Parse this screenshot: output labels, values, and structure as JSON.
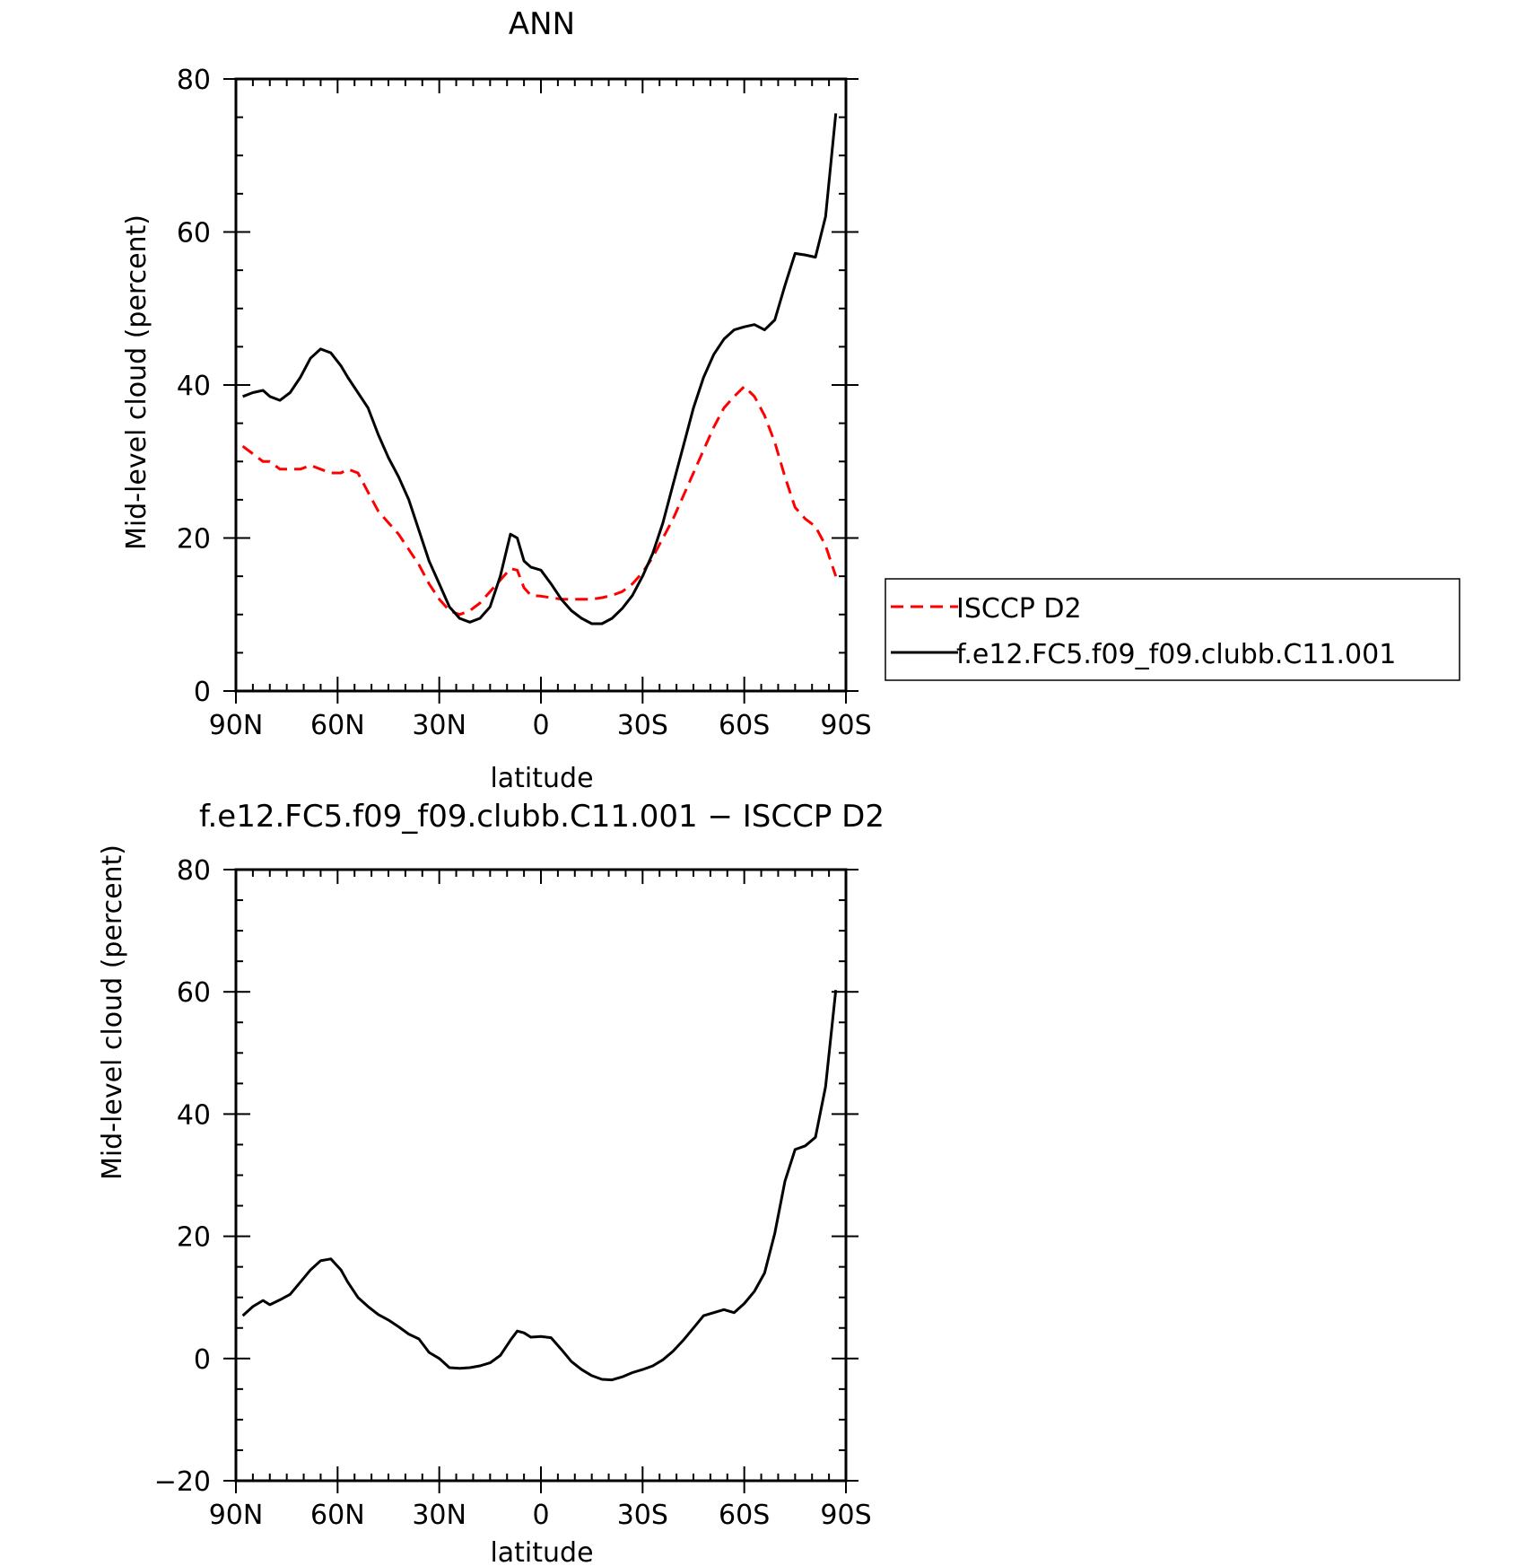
{
  "chart_data": [
    {
      "type": "line",
      "title": "ANN",
      "xlabel": "latitude",
      "ylabel": "Mid-level cloud (percent)",
      "xlim": [
        90,
        -90
      ],
      "ylim": [
        0,
        80
      ],
      "x_ticks": [
        90,
        60,
        30,
        0,
        -30,
        -60,
        -90
      ],
      "x_tick_labels": [
        "90N",
        "60N",
        "30N",
        "0",
        "30S",
        "60S",
        "90S"
      ],
      "y_ticks": [
        0,
        20,
        40,
        60,
        80
      ],
      "y_tick_labels": [
        "0",
        "20",
        "40",
        "60",
        "80"
      ],
      "legend": {
        "position": "right",
        "entries": [
          "ISCCP D2",
          "f.e12.FC5.f09_f09.clubb.C11.001"
        ]
      },
      "series": [
        {
          "name": "ISCCP D2",
          "color": "#ff0000",
          "dashed": true,
          "x": [
            88,
            85,
            82,
            80,
            77,
            74,
            71,
            68,
            65,
            62,
            59,
            57,
            54,
            51,
            48,
            45,
            42,
            39,
            36,
            33,
            30,
            27,
            24,
            21,
            18,
            15,
            12,
            9,
            7,
            5,
            3,
            0,
            -3,
            -6,
            -9,
            -12,
            -15,
            -18,
            -21,
            -24,
            -27,
            -30,
            -33,
            -36,
            -39,
            -42,
            -45,
            -48,
            -51,
            -54,
            -57,
            -60,
            -63,
            -66,
            -69,
            -72,
            -75,
            -78,
            -81,
            -84,
            -87
          ],
          "y": [
            32,
            31,
            30,
            30,
            29,
            29,
            29,
            29.5,
            29,
            28.5,
            28.5,
            29,
            28.5,
            26,
            23.5,
            22,
            20.5,
            18.5,
            16.5,
            14,
            12,
            10.5,
            10,
            10.5,
            11.5,
            13,
            14.5,
            16,
            15.8,
            13.5,
            12.5,
            12.4,
            12.2,
            12,
            12,
            12,
            12,
            12.2,
            12.5,
            13,
            14,
            15.5,
            17.5,
            20,
            22.5,
            25.5,
            28.5,
            31.5,
            34.5,
            37,
            38.5,
            39.8,
            38.5,
            36,
            32.5,
            28,
            24,
            22.5,
            21.5,
            19,
            15
          ]
        },
        {
          "name": "f.e12.FC5.f09_f09.clubb.C11.001",
          "color": "#000000",
          "dashed": false,
          "x": [
            88,
            85,
            82,
            80,
            77,
            74,
            71,
            68,
            65,
            62,
            59,
            57,
            54,
            51,
            48,
            45,
            42,
            39,
            36,
            33,
            30,
            27,
            24,
            21,
            18,
            15,
            12,
            9,
            7,
            5,
            3,
            0,
            -3,
            -6,
            -9,
            -12,
            -15,
            -18,
            -21,
            -24,
            -27,
            -30,
            -33,
            -36,
            -39,
            -42,
            -45,
            -48,
            -51,
            -54,
            -57,
            -60,
            -63,
            -66,
            -69,
            -72,
            -75,
            -78,
            -81,
            -84,
            -87
          ],
          "y": [
            38.5,
            39,
            39.3,
            38.5,
            38,
            39,
            41,
            43.5,
            44.7,
            44.2,
            42.5,
            41,
            39,
            37,
            33.5,
            30.5,
            28,
            25,
            21,
            17,
            14,
            11,
            9.5,
            9,
            9.5,
            11,
            15,
            20.5,
            20,
            17,
            16.2,
            15.8,
            14,
            12,
            10.5,
            9.5,
            8.8,
            8.8,
            9.5,
            10.8,
            12.5,
            15,
            18,
            22,
            27,
            32,
            37,
            41,
            44,
            46,
            47.2,
            47.6,
            47.9,
            47.2,
            48.5,
            53,
            57.2,
            57,
            56.7,
            62,
            75.5
          ]
        }
      ]
    },
    {
      "type": "line",
      "title": "f.e12.FC5.f09_f09.clubb.C11.001 − ISCCP D2",
      "xlabel": "latitude",
      "ylabel": "Mid-level cloud (percent)",
      "xlim": [
        90,
        -90
      ],
      "ylim": [
        -20,
        80
      ],
      "x_ticks": [
        90,
        60,
        30,
        0,
        -30,
        -60,
        -90
      ],
      "x_tick_labels": [
        "90N",
        "60N",
        "30N",
        "0",
        "30S",
        "60S",
        "90S"
      ],
      "y_ticks": [
        -20,
        0,
        20,
        40,
        60,
        80
      ],
      "y_tick_labels": [
        "−20",
        "0",
        "20",
        "40",
        "60",
        "80"
      ],
      "series": [
        {
          "color": "#000000",
          "dashed": false,
          "x": [
            88,
            85,
            82,
            80,
            77,
            74,
            71,
            68,
            65,
            62,
            59,
            57,
            54,
            51,
            48,
            45,
            42,
            39,
            36,
            33,
            30,
            27,
            24,
            21,
            18,
            15,
            12,
            9,
            7,
            5,
            3,
            0,
            -3,
            -6,
            -9,
            -12,
            -15,
            -18,
            -21,
            -24,
            -27,
            -30,
            -33,
            -36,
            -39,
            -42,
            -45,
            -48,
            -51,
            -54,
            -57,
            -60,
            -63,
            -66,
            -69,
            -72,
            -75,
            -78,
            -81,
            -84,
            -87
          ],
          "y": [
            7,
            8.5,
            9.5,
            8.8,
            9.6,
            10.5,
            12.5,
            14.5,
            16,
            16.3,
            14.5,
            12.5,
            10,
            8.5,
            7.2,
            6.3,
            5.2,
            4,
            3.2,
            1,
            0,
            -1.5,
            -1.6,
            -1.5,
            -1.2,
            -0.7,
            0.5,
            3,
            4.5,
            4.2,
            3.5,
            3.6,
            3.4,
            1.5,
            -0.5,
            -1.8,
            -2.8,
            -3.4,
            -3.5,
            -3,
            -2.3,
            -1.8,
            -1.2,
            -0.2,
            1.2,
            3,
            5,
            7,
            7.5,
            8,
            7.5,
            9,
            11,
            14,
            20.5,
            29,
            34.2,
            34.8,
            36.2,
            44.5,
            60.3
          ]
        }
      ]
    }
  ]
}
